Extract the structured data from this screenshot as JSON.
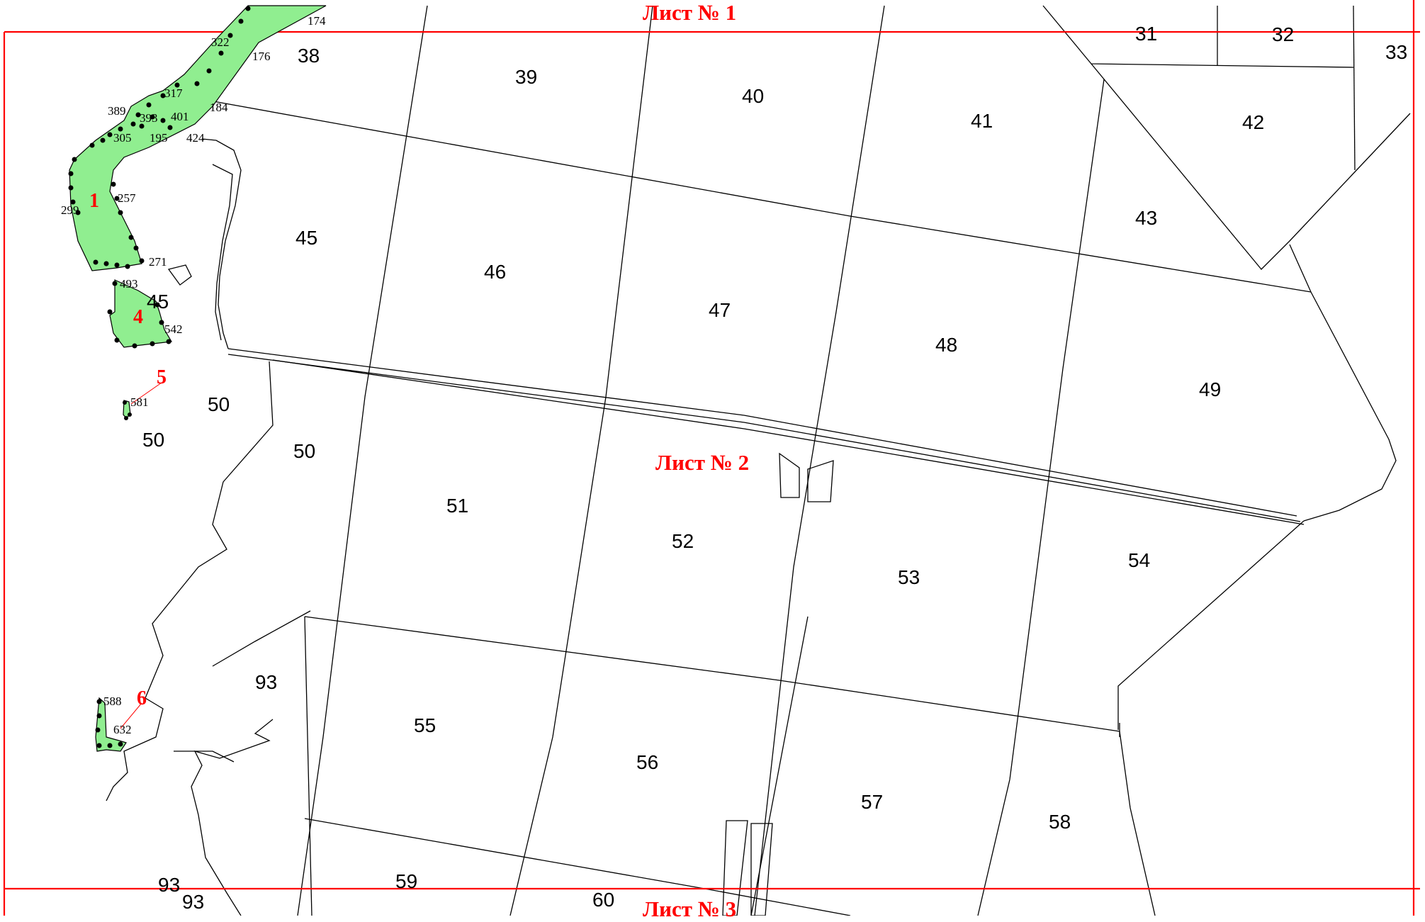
{
  "colors": {
    "frame": "#ff0000",
    "zone_fill": "#90ee90",
    "lines": "#000000",
    "zone_label": "#ff0000"
  },
  "sheets": {
    "top": "Лист № 1",
    "middle": "Лист № 2",
    "bottom": "Лист № 3"
  },
  "blocks": {
    "b31": "31",
    "b32": "32",
    "b33": "33",
    "b38": "38",
    "b39": "39",
    "b40": "40",
    "b41": "41",
    "b42": "42",
    "b43": "43",
    "b45a": "45",
    "b45b": "45",
    "b46": "46",
    "b47": "47",
    "b48": "48",
    "b49": "49",
    "b50a": "50",
    "b50b": "50",
    "b50c": "50",
    "b51": "51",
    "b52": "52",
    "b53": "53",
    "b54": "54",
    "b55": "55",
    "b56": "56",
    "b57": "57",
    "b58": "58",
    "b59": "59",
    "b60": "60",
    "b93a": "93",
    "b93b": "93",
    "b93c": "93"
  },
  "points": {
    "p174": "174",
    "p322": "322",
    "p176": "176",
    "p317": "317",
    "p184": "184",
    "p389": "389",
    "p393": "393",
    "p401": "401",
    "p305": "305",
    "p195": "195",
    "p424": "424",
    "p257": "257",
    "p299": "299",
    "p271": "271",
    "p493": "493",
    "p542": "542",
    "p581": "581",
    "p588": "588",
    "p632": "632"
  },
  "zones": {
    "z1": "1",
    "z4": "4",
    "z5": "5",
    "z6": "6"
  }
}
